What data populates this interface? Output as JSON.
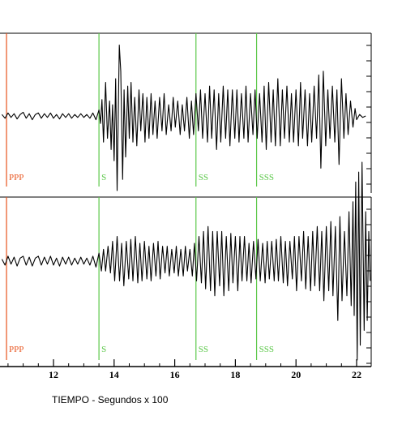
{
  "chart_data": {
    "type": "line",
    "xlabel": "TIEMPO - Segundos x 100",
    "xlim": [
      10.3,
      22.5
    ],
    "x_ticks": [
      12,
      14,
      16,
      18,
      20,
      22
    ],
    "x_tick_labels": [
      "12",
      "14",
      "16",
      "18",
      "20",
      "22"
    ],
    "grid": false,
    "phase_markers": [
      {
        "label": "PPP",
        "x": 10.45,
        "color": "#e8541e"
      },
      {
        "label": "S",
        "x": 13.5,
        "color": "#5cc84a"
      },
      {
        "label": "SS",
        "x": 16.7,
        "color": "#5cc84a"
      },
      {
        "label": "SSS",
        "x": 18.7,
        "color": "#5cc84a"
      }
    ],
    "series": [
      {
        "trace": [
          [
            10.3,
            0.02
          ],
          [
            10.4,
            -0.03
          ],
          [
            10.5,
            0.04
          ],
          [
            10.6,
            -0.02
          ],
          [
            10.7,
            0.03
          ],
          [
            10.8,
            -0.04
          ],
          [
            10.9,
            0.02
          ],
          [
            11.0,
            0.05
          ],
          [
            11.1,
            -0.03
          ],
          [
            11.2,
            0.03
          ],
          [
            11.3,
            -0.05
          ],
          [
            11.4,
            0.02
          ],
          [
            11.5,
            0.04
          ],
          [
            11.6,
            -0.03
          ],
          [
            11.7,
            0.03
          ],
          [
            11.8,
            -0.02
          ],
          [
            11.9,
            0.04
          ],
          [
            12.0,
            -0.03
          ],
          [
            12.1,
            0.02
          ],
          [
            12.2,
            -0.04
          ],
          [
            12.3,
            0.03
          ],
          [
            12.4,
            -0.02
          ],
          [
            12.5,
            0.03
          ],
          [
            12.6,
            -0.03
          ],
          [
            12.7,
            0.02
          ],
          [
            12.8,
            -0.02
          ],
          [
            12.9,
            0.03
          ],
          [
            13.0,
            -0.02
          ],
          [
            13.1,
            0.02
          ],
          [
            13.2,
            -0.03
          ],
          [
            13.3,
            0.04
          ],
          [
            13.4,
            -0.05
          ],
          [
            13.5,
            0.08
          ],
          [
            13.55,
            -0.1
          ],
          [
            13.6,
            0.22
          ],
          [
            13.65,
            -0.35
          ],
          [
            13.72,
            0.45
          ],
          [
            13.78,
            -0.3
          ],
          [
            13.85,
            0.2
          ],
          [
            13.9,
            -0.45
          ],
          [
            13.95,
            0.15
          ],
          [
            14.0,
            -0.6
          ],
          [
            14.05,
            0.5
          ],
          [
            14.1,
            -1.0
          ],
          [
            14.17,
            0.95
          ],
          [
            14.22,
            0.6
          ],
          [
            14.28,
            -0.85
          ],
          [
            14.33,
            0.35
          ],
          [
            14.38,
            -0.55
          ],
          [
            14.45,
            0.4
          ],
          [
            14.5,
            -0.3
          ],
          [
            14.56,
            0.45
          ],
          [
            14.62,
            -0.35
          ],
          [
            14.68,
            0.25
          ],
          [
            14.75,
            -0.4
          ],
          [
            14.82,
            0.35
          ],
          [
            14.88,
            -0.2
          ],
          [
            14.95,
            0.3
          ],
          [
            15.02,
            -0.35
          ],
          [
            15.08,
            0.25
          ],
          [
            15.15,
            -0.3
          ],
          [
            15.22,
            0.3
          ],
          [
            15.28,
            -0.25
          ],
          [
            15.35,
            0.2
          ],
          [
            15.42,
            -0.3
          ],
          [
            15.5,
            0.25
          ],
          [
            15.58,
            -0.2
          ],
          [
            15.65,
            0.3
          ],
          [
            15.72,
            -0.25
          ],
          [
            15.8,
            0.15
          ],
          [
            15.88,
            -0.2
          ],
          [
            15.95,
            0.25
          ],
          [
            16.02,
            -0.15
          ],
          [
            16.1,
            0.2
          ],
          [
            16.18,
            -0.25
          ],
          [
            16.25,
            0.15
          ],
          [
            16.32,
            -0.2
          ],
          [
            16.4,
            0.25
          ],
          [
            16.48,
            -0.3
          ],
          [
            16.55,
            0.2
          ],
          [
            16.62,
            -0.25
          ],
          [
            16.7,
            0.3
          ],
          [
            16.78,
            -0.2
          ],
          [
            16.85,
            0.35
          ],
          [
            16.92,
            -0.3
          ],
          [
            17.0,
            0.3
          ],
          [
            17.08,
            -0.35
          ],
          [
            17.15,
            0.4
          ],
          [
            17.22,
            -0.3
          ],
          [
            17.3,
            0.35
          ],
          [
            17.38,
            -0.45
          ],
          [
            17.45,
            0.3
          ],
          [
            17.52,
            -0.35
          ],
          [
            17.6,
            0.4
          ],
          [
            17.68,
            -0.3
          ],
          [
            17.75,
            0.35
          ],
          [
            17.82,
            -0.4
          ],
          [
            17.9,
            0.35
          ],
          [
            17.98,
            -0.3
          ],
          [
            18.05,
            0.35
          ],
          [
            18.12,
            -0.35
          ],
          [
            18.2,
            0.3
          ],
          [
            18.28,
            -0.3
          ],
          [
            18.35,
            0.4
          ],
          [
            18.42,
            -0.35
          ],
          [
            18.5,
            0.3
          ],
          [
            18.58,
            -0.25
          ],
          [
            18.65,
            0.35
          ],
          [
            18.72,
            -0.3
          ],
          [
            18.8,
            0.3
          ],
          [
            18.88,
            -0.35
          ],
          [
            18.95,
            0.4
          ],
          [
            19.02,
            -0.45
          ],
          [
            19.1,
            0.45
          ],
          [
            19.18,
            -0.35
          ],
          [
            19.25,
            0.35
          ],
          [
            19.32,
            -0.4
          ],
          [
            19.4,
            0.5
          ],
          [
            19.48,
            -0.4
          ],
          [
            19.55,
            0.35
          ],
          [
            19.62,
            -0.3
          ],
          [
            19.7,
            0.4
          ],
          [
            19.78,
            -0.35
          ],
          [
            19.85,
            0.3
          ],
          [
            19.92,
            -0.35
          ],
          [
            20.0,
            0.35
          ],
          [
            20.08,
            -0.4
          ],
          [
            20.15,
            0.45
          ],
          [
            20.22,
            -0.3
          ],
          [
            20.3,
            0.35
          ],
          [
            20.38,
            -0.4
          ],
          [
            20.45,
            0.3
          ],
          [
            20.52,
            -0.35
          ],
          [
            20.6,
            0.4
          ],
          [
            20.68,
            -0.3
          ],
          [
            20.75,
            0.55
          ],
          [
            20.82,
            -0.7
          ],
          [
            20.9,
            0.6
          ],
          [
            20.98,
            -0.4
          ],
          [
            21.05,
            0.35
          ],
          [
            21.12,
            -0.3
          ],
          [
            21.2,
            0.4
          ],
          [
            21.28,
            -0.35
          ],
          [
            21.35,
            0.35
          ],
          [
            21.42,
            -0.65
          ],
          [
            21.5,
            0.5
          ],
          [
            21.58,
            -0.3
          ],
          [
            21.65,
            0.3
          ],
          [
            21.72,
            -0.25
          ],
          [
            21.8,
            0.2
          ],
          [
            21.88,
            -0.15
          ],
          [
            21.95,
            0.1
          ],
          [
            22.0,
            -0.05
          ],
          [
            22.1,
            0.02
          ],
          [
            22.2,
            -0.02
          ],
          [
            22.3,
            0.0
          ]
        ]
      },
      {
        "trace": [
          [
            10.3,
            0.02
          ],
          [
            10.4,
            -0.04
          ],
          [
            10.5,
            0.05
          ],
          [
            10.6,
            -0.03
          ],
          [
            10.7,
            0.04
          ],
          [
            10.8,
            -0.05
          ],
          [
            10.9,
            0.03
          ],
          [
            11.0,
            0.05
          ],
          [
            11.1,
            -0.04
          ],
          [
            11.2,
            0.04
          ],
          [
            11.3,
            -0.05
          ],
          [
            11.4,
            0.03
          ],
          [
            11.5,
            0.05
          ],
          [
            11.6,
            -0.04
          ],
          [
            11.7,
            0.04
          ],
          [
            11.8,
            -0.03
          ],
          [
            11.9,
            0.05
          ],
          [
            12.0,
            -0.04
          ],
          [
            12.1,
            0.03
          ],
          [
            12.2,
            -0.05
          ],
          [
            12.3,
            0.04
          ],
          [
            12.4,
            -0.03
          ],
          [
            12.5,
            0.04
          ],
          [
            12.6,
            -0.04
          ],
          [
            12.7,
            0.03
          ],
          [
            12.8,
            -0.03
          ],
          [
            12.9,
            0.04
          ],
          [
            13.0,
            -0.03
          ],
          [
            13.1,
            0.03
          ],
          [
            13.2,
            -0.04
          ],
          [
            13.3,
            0.05
          ],
          [
            13.4,
            -0.06
          ],
          [
            13.5,
            0.08
          ],
          [
            13.58,
            -0.1
          ],
          [
            13.65,
            0.12
          ],
          [
            13.72,
            -0.1
          ],
          [
            13.8,
            0.15
          ],
          [
            13.88,
            -0.12
          ],
          [
            13.95,
            0.2
          ],
          [
            14.02,
            -0.2
          ],
          [
            14.1,
            0.25
          ],
          [
            14.18,
            -0.2
          ],
          [
            14.25,
            0.18
          ],
          [
            14.32,
            -0.25
          ],
          [
            14.4,
            0.2
          ],
          [
            14.48,
            -0.18
          ],
          [
            14.55,
            0.22
          ],
          [
            14.62,
            -0.2
          ],
          [
            14.7,
            0.25
          ],
          [
            14.78,
            -0.22
          ],
          [
            14.85,
            0.18
          ],
          [
            14.92,
            -0.2
          ],
          [
            15.0,
            0.2
          ],
          [
            15.08,
            -0.18
          ],
          [
            15.15,
            0.15
          ],
          [
            15.22,
            -0.2
          ],
          [
            15.3,
            0.18
          ],
          [
            15.38,
            -0.15
          ],
          [
            15.45,
            0.2
          ],
          [
            15.52,
            -0.18
          ],
          [
            15.6,
            0.15
          ],
          [
            15.68,
            -0.12
          ],
          [
            15.75,
            0.15
          ],
          [
            15.82,
            -0.15
          ],
          [
            15.9,
            0.12
          ],
          [
            15.98,
            -0.12
          ],
          [
            16.05,
            0.15
          ],
          [
            16.12,
            -0.15
          ],
          [
            16.2,
            0.12
          ],
          [
            16.28,
            -0.15
          ],
          [
            16.35,
            0.15
          ],
          [
            16.42,
            -0.1
          ],
          [
            16.5,
            0.12
          ],
          [
            16.58,
            -0.15
          ],
          [
            16.65,
            0.18
          ],
          [
            16.72,
            -0.2
          ],
          [
            16.8,
            0.25
          ],
          [
            16.88,
            -0.22
          ],
          [
            16.95,
            0.3
          ],
          [
            17.02,
            -0.28
          ],
          [
            17.1,
            0.35
          ],
          [
            17.18,
            -0.3
          ],
          [
            17.25,
            0.3
          ],
          [
            17.32,
            -0.35
          ],
          [
            17.4,
            0.3
          ],
          [
            17.48,
            -0.25
          ],
          [
            17.55,
            0.3
          ],
          [
            17.62,
            -0.35
          ],
          [
            17.7,
            0.25
          ],
          [
            17.78,
            -0.3
          ],
          [
            17.85,
            0.28
          ],
          [
            17.92,
            -0.22
          ],
          [
            18.0,
            0.25
          ],
          [
            18.08,
            -0.3
          ],
          [
            18.15,
            0.25
          ],
          [
            18.22,
            -0.2
          ],
          [
            18.3,
            0.25
          ],
          [
            18.38,
            -0.2
          ],
          [
            18.45,
            0.18
          ],
          [
            18.52,
            -0.22
          ],
          [
            18.6,
            0.2
          ],
          [
            18.68,
            -0.18
          ],
          [
            18.75,
            0.22
          ],
          [
            18.82,
            -0.2
          ],
          [
            18.9,
            0.18
          ],
          [
            18.98,
            -0.22
          ],
          [
            19.05,
            0.2
          ],
          [
            19.12,
            -0.18
          ],
          [
            19.2,
            0.2
          ],
          [
            19.28,
            -0.2
          ],
          [
            19.35,
            0.22
          ],
          [
            19.42,
            -0.2
          ],
          [
            19.5,
            0.25
          ],
          [
            19.58,
            -0.22
          ],
          [
            19.65,
            0.2
          ],
          [
            19.72,
            -0.25
          ],
          [
            19.8,
            0.2
          ],
          [
            19.88,
            -0.18
          ],
          [
            19.95,
            0.25
          ],
          [
            20.02,
            -0.3
          ],
          [
            20.1,
            0.25
          ],
          [
            20.18,
            -0.2
          ],
          [
            20.25,
            0.3
          ],
          [
            20.32,
            -0.28
          ],
          [
            20.4,
            0.25
          ],
          [
            20.48,
            -0.3
          ],
          [
            20.55,
            0.3
          ],
          [
            20.62,
            -0.25
          ],
          [
            20.7,
            0.35
          ],
          [
            20.78,
            -0.3
          ],
          [
            20.85,
            0.3
          ],
          [
            20.92,
            -0.4
          ],
          [
            21.0,
            0.35
          ],
          [
            21.08,
            -0.3
          ],
          [
            21.15,
            0.4
          ],
          [
            21.22,
            -0.35
          ],
          [
            21.3,
            0.35
          ],
          [
            21.38,
            -0.6
          ],
          [
            21.45,
            0.45
          ],
          [
            21.52,
            -0.4
          ],
          [
            21.6,
            0.3
          ],
          [
            21.68,
            -0.35
          ],
          [
            21.75,
            0.5
          ],
          [
            21.82,
            -0.45
          ],
          [
            21.88,
            0.6
          ],
          [
            21.92,
            -0.55
          ],
          [
            21.97,
            0.8
          ],
          [
            22.02,
            -1.0
          ],
          [
            22.07,
            0.9
          ],
          [
            22.12,
            -0.85
          ],
          [
            22.18,
            1.0
          ],
          [
            22.25,
            -0.7
          ],
          [
            22.3,
            0.5
          ],
          [
            22.35,
            -0.6
          ],
          [
            22.4,
            0.3
          ],
          [
            22.45,
            -0.2
          ]
        ]
      }
    ]
  }
}
